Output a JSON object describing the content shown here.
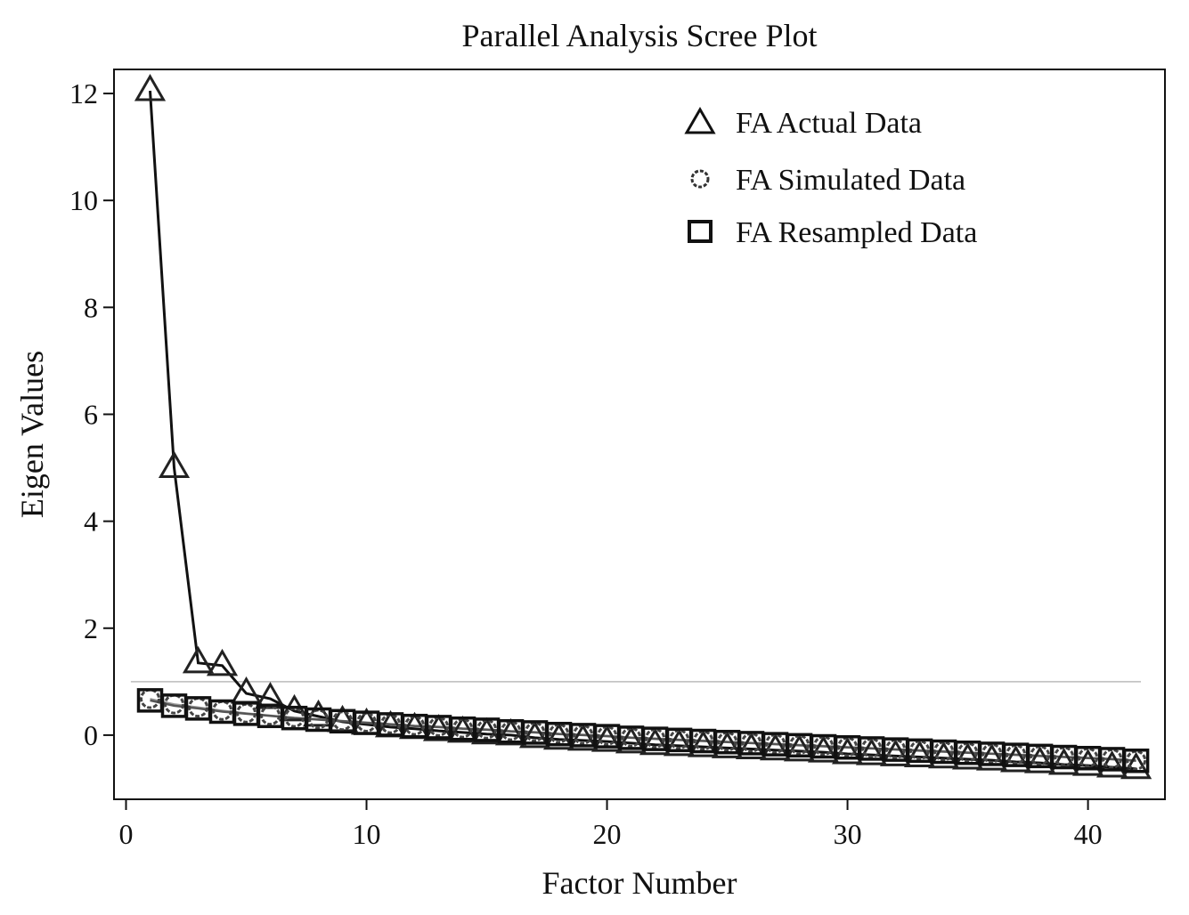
{
  "chart_data": {
    "type": "scatter",
    "title": "Parallel Analysis Scree Plot",
    "xlabel": "Factor Number",
    "ylabel": "Eigen Values",
    "xlim": [
      -0.5,
      43.2
    ],
    "ylim": [
      -1.2,
      12.45
    ],
    "xticks": [
      0,
      10,
      20,
      30,
      40
    ],
    "yticks": [
      0,
      2,
      4,
      6,
      8,
      10,
      12
    ],
    "grid": false,
    "legend_position": "top-right",
    "reference_line": 1,
    "x": [
      1,
      2,
      3,
      4,
      5,
      6,
      7,
      8,
      9,
      10,
      11,
      12,
      13,
      14,
      15,
      16,
      17,
      18,
      19,
      20,
      21,
      22,
      23,
      24,
      25,
      26,
      27,
      28,
      29,
      30,
      31,
      32,
      33,
      34,
      35,
      36,
      37,
      38,
      39,
      40,
      41,
      42
    ],
    "series": [
      {
        "name": "FA Actual Data",
        "marker": "triangle",
        "values": [
          12.05,
          5.0,
          1.35,
          1.3,
          0.78,
          0.68,
          0.45,
          0.35,
          0.25,
          0.2,
          0.15,
          0.12,
          0.08,
          0.05,
          0.02,
          0.0,
          -0.05,
          -0.08,
          -0.1,
          -0.12,
          -0.15,
          -0.18,
          -0.2,
          -0.22,
          -0.24,
          -0.26,
          -0.28,
          -0.3,
          -0.32,
          -0.35,
          -0.37,
          -0.39,
          -0.41,
          -0.43,
          -0.45,
          -0.47,
          -0.5,
          -0.52,
          -0.55,
          -0.57,
          -0.6,
          -0.63
        ]
      },
      {
        "name": "FA Simulated Data",
        "marker": "circle",
        "values": [
          0.68,
          0.58,
          0.52,
          0.46,
          0.41,
          0.37,
          0.33,
          0.3,
          0.27,
          0.24,
          0.21,
          0.18,
          0.16,
          0.13,
          0.11,
          0.08,
          0.06,
          0.03,
          0.01,
          -0.01,
          -0.04,
          -0.06,
          -0.08,
          -0.1,
          -0.12,
          -0.14,
          -0.16,
          -0.18,
          -0.2,
          -0.22,
          -0.24,
          -0.26,
          -0.28,
          -0.3,
          -0.32,
          -0.34,
          -0.36,
          -0.38,
          -0.4,
          -0.42,
          -0.44,
          -0.47
        ]
      },
      {
        "name": "FA Resampled Data",
        "marker": "square",
        "values": [
          0.65,
          0.55,
          0.5,
          0.44,
          0.4,
          0.36,
          0.32,
          0.29,
          0.26,
          0.23,
          0.2,
          0.17,
          0.15,
          0.12,
          0.1,
          0.07,
          0.05,
          0.02,
          0.0,
          -0.02,
          -0.05,
          -0.07,
          -0.09,
          -0.11,
          -0.13,
          -0.15,
          -0.17,
          -0.19,
          -0.21,
          -0.23,
          -0.25,
          -0.27,
          -0.29,
          -0.31,
          -0.33,
          -0.35,
          -0.37,
          -0.39,
          -0.41,
          -0.43,
          -0.45,
          -0.48
        ]
      }
    ]
  }
}
